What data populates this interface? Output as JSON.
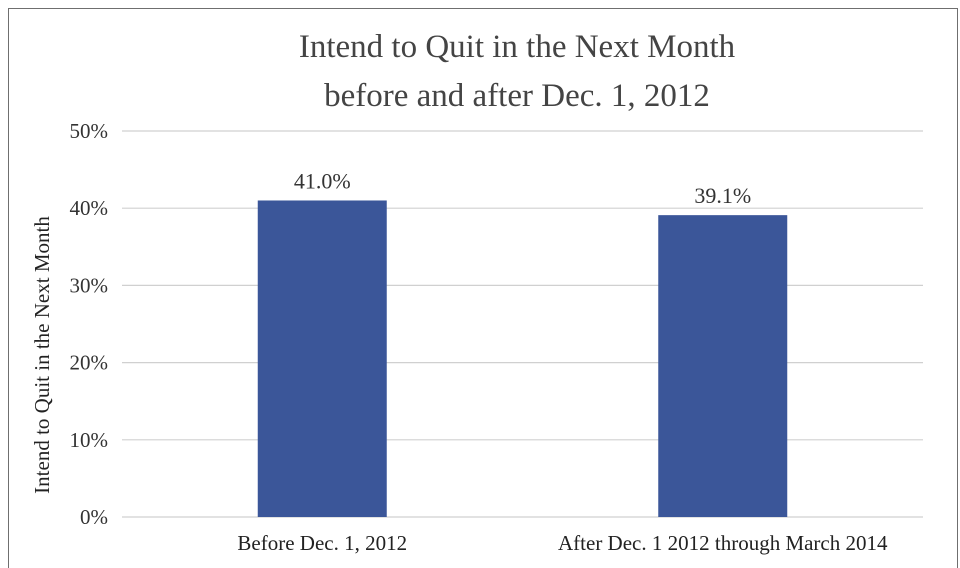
{
  "chart_data": {
    "type": "bar",
    "title": [
      "Intend to Quit in the Next Month",
      "before and after Dec. 1, 2012"
    ],
    "xlabel": "",
    "ylabel": "Intend to Quit in the Next Month",
    "categories": [
      "Before Dec. 1, 2012",
      "After Dec. 1 2012 through March 2014"
    ],
    "values": [
      41.0,
      39.1
    ],
    "data_labels": [
      "41.0%",
      "39.1%"
    ],
    "ylim": [
      0,
      50
    ],
    "yticks": [
      0,
      10,
      20,
      30,
      40,
      50
    ],
    "ytick_labels": [
      "0%",
      "10%",
      "20%",
      "30%",
      "40%",
      "50%"
    ],
    "grid": true,
    "legend": "none",
    "bar_color": "#3b5699",
    "grid_color": "#d0d0d0"
  }
}
